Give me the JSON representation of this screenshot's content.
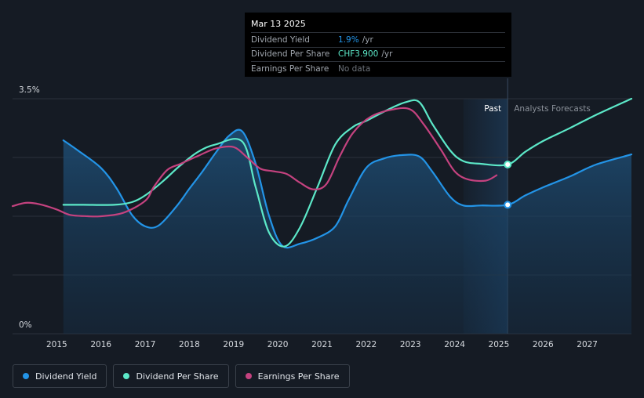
{
  "tooltip": {
    "date": "Mar 13 2025",
    "rows": [
      {
        "label": "Dividend Yield",
        "value": "1.9%",
        "unit": "/yr",
        "color": "#2394e7"
      },
      {
        "label": "Dividend Per Share",
        "value": "CHF3.900",
        "unit": "/yr",
        "color": "#5ce8c8"
      },
      {
        "label": "Earnings Per Share",
        "value": "No data",
        "unit": "",
        "color": "#6d737b"
      }
    ]
  },
  "legend": [
    {
      "label": "Dividend Yield",
      "color": "#2394e7"
    },
    {
      "label": "Dividend Per Share",
      "color": "#5ce8c8"
    },
    {
      "label": "Earnings Per Share",
      "color": "#c4427f"
    }
  ],
  "chart_data": {
    "type": "line",
    "y_axis_labels": [
      "3.5%",
      "0%"
    ],
    "ylim": [
      0,
      3.5
    ],
    "xlim": [
      2014.0,
      2028.0
    ],
    "x_ticks": [
      "2015",
      "2016",
      "2017",
      "2018",
      "2019",
      "2020",
      "2021",
      "2022",
      "2023",
      "2024",
      "2025",
      "2026",
      "2027"
    ],
    "past_label": "Past",
    "forecast_label": "Analysts Forecasts",
    "past_region": [
      2024.2,
      2025.2
    ],
    "marker_x": 2025.2,
    "series": [
      {
        "name": "Dividend Yield",
        "color": "#2394e7",
        "filled": true,
        "points": [
          [
            2015.15,
            2.88
          ],
          [
            2015.5,
            2.72
          ],
          [
            2016.0,
            2.47
          ],
          [
            2016.35,
            2.17
          ],
          [
            2016.7,
            1.77
          ],
          [
            2017.0,
            1.6
          ],
          [
            2017.3,
            1.61
          ],
          [
            2017.7,
            1.89
          ],
          [
            2018.0,
            2.16
          ],
          [
            2018.3,
            2.42
          ],
          [
            2018.6,
            2.7
          ],
          [
            2018.9,
            2.95
          ],
          [
            2019.2,
            3.01
          ],
          [
            2019.5,
            2.53
          ],
          [
            2019.8,
            1.76
          ],
          [
            2020.1,
            1.31
          ],
          [
            2020.5,
            1.34
          ],
          [
            2020.9,
            1.43
          ],
          [
            2021.3,
            1.6
          ],
          [
            2021.6,
            1.99
          ],
          [
            2022.0,
            2.47
          ],
          [
            2022.4,
            2.61
          ],
          [
            2022.8,
            2.66
          ],
          [
            2023.2,
            2.64
          ],
          [
            2023.5,
            2.41
          ],
          [
            2023.9,
            2.04
          ],
          [
            2024.2,
            1.91
          ],
          [
            2024.6,
            1.91
          ],
          [
            2025.2,
            1.92
          ],
          [
            2025.6,
            2.06
          ],
          [
            2026.0,
            2.18
          ],
          [
            2026.6,
            2.34
          ],
          [
            2027.2,
            2.52
          ],
          [
            2028.0,
            2.67
          ]
        ]
      },
      {
        "name": "Dividend Per Share",
        "color": "#5ce8c8",
        "filled": false,
        "points": [
          [
            2015.15,
            1.92
          ],
          [
            2015.6,
            1.92
          ],
          [
            2016.3,
            1.92
          ],
          [
            2016.7,
            1.96
          ],
          [
            2017.0,
            2.06
          ],
          [
            2017.4,
            2.27
          ],
          [
            2017.8,
            2.51
          ],
          [
            2018.2,
            2.71
          ],
          [
            2018.6,
            2.82
          ],
          [
            2019.2,
            2.86
          ],
          [
            2019.5,
            2.18
          ],
          [
            2019.8,
            1.51
          ],
          [
            2020.15,
            1.3
          ],
          [
            2020.5,
            1.58
          ],
          [
            2020.9,
            2.19
          ],
          [
            2021.3,
            2.82
          ],
          [
            2021.7,
            3.08
          ],
          [
            2022.0,
            3.17
          ],
          [
            2022.5,
            3.34
          ],
          [
            2022.9,
            3.45
          ],
          [
            2023.2,
            3.45
          ],
          [
            2023.5,
            3.12
          ],
          [
            2023.9,
            2.73
          ],
          [
            2024.2,
            2.57
          ],
          [
            2024.6,
            2.53
          ],
          [
            2025.2,
            2.52
          ],
          [
            2025.6,
            2.71
          ],
          [
            2026.0,
            2.87
          ],
          [
            2026.6,
            3.06
          ],
          [
            2027.2,
            3.26
          ],
          [
            2028.0,
            3.5
          ]
        ]
      },
      {
        "name": "Earnings Per Share",
        "color": "#c4427f",
        "filled": false,
        "points": [
          [
            2014.0,
            1.9
          ],
          [
            2014.3,
            1.95
          ],
          [
            2014.6,
            1.93
          ],
          [
            2015.0,
            1.85
          ],
          [
            2015.3,
            1.77
          ],
          [
            2015.7,
            1.75
          ],
          [
            2016.0,
            1.75
          ],
          [
            2016.5,
            1.8
          ],
          [
            2017.0,
            1.98
          ],
          [
            2017.2,
            2.19
          ],
          [
            2017.5,
            2.44
          ],
          [
            2017.8,
            2.53
          ],
          [
            2018.2,
            2.65
          ],
          [
            2018.6,
            2.76
          ],
          [
            2019.0,
            2.78
          ],
          [
            2019.3,
            2.63
          ],
          [
            2019.6,
            2.46
          ],
          [
            2019.9,
            2.42
          ],
          [
            2020.2,
            2.38
          ],
          [
            2020.5,
            2.25
          ],
          [
            2020.8,
            2.15
          ],
          [
            2021.1,
            2.23
          ],
          [
            2021.4,
            2.64
          ],
          [
            2021.7,
            2.99
          ],
          [
            2022.1,
            3.23
          ],
          [
            2022.6,
            3.34
          ],
          [
            2023.0,
            3.34
          ],
          [
            2023.3,
            3.12
          ],
          [
            2023.7,
            2.73
          ],
          [
            2024.0,
            2.42
          ],
          [
            2024.3,
            2.3
          ],
          [
            2024.7,
            2.28
          ],
          [
            2024.95,
            2.36
          ]
        ]
      }
    ]
  }
}
